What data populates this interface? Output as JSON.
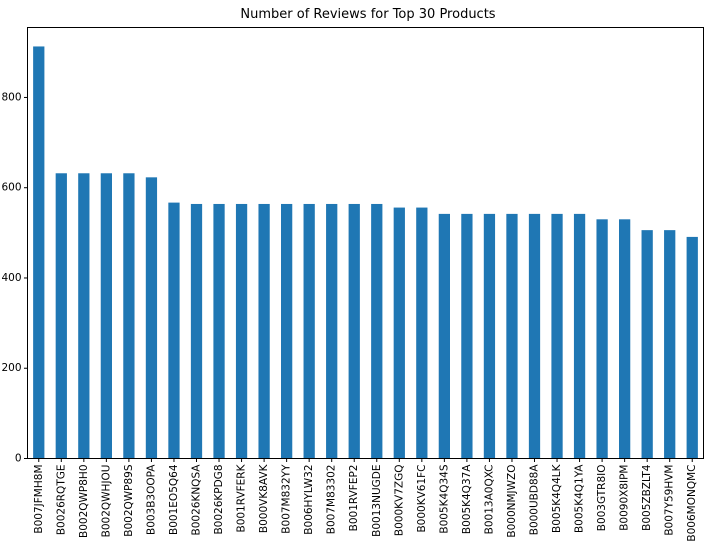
{
  "chart_data": {
    "type": "bar",
    "title": "Number of Reviews for Top 30 Products",
    "xlabel": "",
    "ylabel": "",
    "ylim": [
      0,
      955
    ],
    "yticks": [
      0,
      200,
      400,
      600,
      800
    ],
    "grid": false,
    "legend": "none",
    "bar_color": "#1f77b4",
    "categories": [
      "B007JFMH8M",
      "B0026RQTGE",
      "B002QWP8H0",
      "B002QWHJOU",
      "B002QWP89S",
      "B003B3OOPA",
      "B001EO5Q64",
      "B0026KNQSA",
      "B0026KPDG8",
      "B001RVFERK",
      "B000VK8AVK",
      "B007M832YY",
      "B006HYLW32",
      "B007M83302",
      "B001RVFEP2",
      "B0013NUGDE",
      "B000KV7ZGQ",
      "B000KV61FC",
      "B005K4Q34S",
      "B005K4Q37A",
      "B0013A0QXC",
      "B000NMJWZO",
      "B000UBD88A",
      "B005K4Q4LK",
      "B005K4Q1YA",
      "B003GTR8IO",
      "B0090X8IPM",
      "B005ZBZLT4",
      "B007Y59HVM",
      "B006MONQMC"
    ],
    "values": [
      913,
      632,
      632,
      632,
      632,
      623,
      567,
      564,
      564,
      564,
      564,
      564,
      564,
      564,
      564,
      564,
      556,
      556,
      542,
      542,
      542,
      542,
      542,
      542,
      542,
      530,
      530,
      506,
      506,
      491
    ]
  }
}
